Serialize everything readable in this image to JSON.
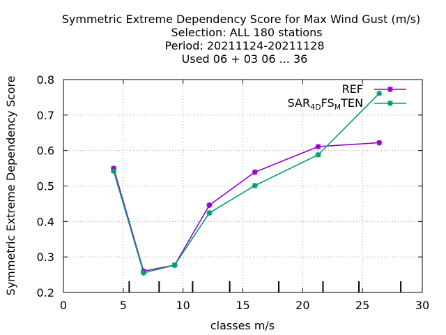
{
  "chart_data": {
    "type": "line",
    "title_lines": [
      "Symmetric Extreme Dependency Score  for Max Wind Gust (m/s)",
      "Selection: ALL    180 stations",
      "Period: 20211124-20211128",
      "Used  06 + 03 06 ... 36"
    ],
    "xlabel": "classes m/s",
    "ylabel": "Symmetric Extreme Dependency Score",
    "xlim": [
      0,
      30
    ],
    "ylim": [
      0.2,
      0.8
    ],
    "xticks": [
      0,
      5,
      10,
      15,
      20,
      25,
      30
    ],
    "yticks": [
      0.2,
      0.3,
      0.4,
      0.5,
      0.6,
      0.7,
      0.8
    ],
    "xtick_labels": [
      "0",
      "5",
      "10",
      "15",
      "20",
      "25",
      "30"
    ],
    "ytick_labels": [
      "0.2",
      "0.3",
      "0.4",
      "0.5",
      "0.6",
      "0.7",
      "0.8"
    ],
    "grid": true,
    "legend_position": "top-right",
    "class_boundaries": [
      5.5,
      8,
      10.8,
      13.9,
      18,
      21.7,
      24.7,
      28.2
    ],
    "series": [
      {
        "name": "REF",
        "color": "#9400d3",
        "x": [
          4.2,
          6.7,
          9.3,
          12.2,
          16,
          21.3,
          26.4
        ],
        "y": [
          0.55,
          0.26,
          0.277,
          0.446,
          0.539,
          0.611,
          0.622
        ]
      },
      {
        "name": "SAR_4D FS_M TEN",
        "legend_parts": [
          "SAR",
          "4D",
          "FS",
          "M",
          "TEN"
        ],
        "color": "#009e73",
        "x": [
          4.2,
          6.7,
          9.3,
          12.2,
          16,
          21.3,
          26.4
        ],
        "y": [
          0.542,
          0.255,
          0.277,
          0.424,
          0.501,
          0.588,
          0.761
        ]
      }
    ]
  }
}
